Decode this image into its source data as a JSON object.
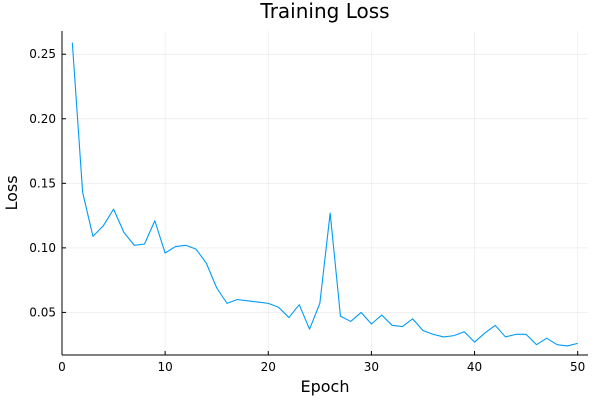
{
  "chart_data": {
    "type": "line",
    "title": "Training Loss",
    "xlabel": "Epoch",
    "ylabel": "Loss",
    "xlim": [
      0,
      51
    ],
    "ylim": [
      0.017,
      0.268
    ],
    "xticks": [
      0,
      10,
      20,
      30,
      40,
      50
    ],
    "yticks": [
      0.05,
      0.1,
      0.15,
      0.2,
      0.25
    ],
    "xtick_labels": [
      "0",
      "10",
      "20",
      "30",
      "40",
      "50"
    ],
    "ytick_labels": [
      "0.05",
      "0.10",
      "0.15",
      "0.20",
      "0.25"
    ],
    "grid": true,
    "legend": "none",
    "line_color": "#009AFA",
    "series": [
      {
        "x": [
          1,
          2,
          3,
          4,
          5,
          6,
          7,
          8,
          9,
          10,
          11,
          12,
          13,
          14,
          15,
          16,
          17,
          18,
          19,
          20,
          21,
          22,
          23,
          24,
          25,
          26,
          27,
          28,
          29,
          30,
          31,
          32,
          33,
          34,
          35,
          36,
          37,
          38,
          39,
          40,
          41,
          42,
          43,
          44,
          45,
          46,
          47,
          48,
          49,
          50
        ],
        "values": [
          0.259,
          0.143,
          0.109,
          0.117,
          0.13,
          0.112,
          0.102,
          0.103,
          0.121,
          0.096,
          0.101,
          0.102,
          0.099,
          0.088,
          0.069,
          0.057,
          0.06,
          0.059,
          0.058,
          0.057,
          0.054,
          0.046,
          0.056,
          0.037,
          0.057,
          0.127,
          0.047,
          0.043,
          0.05,
          0.041,
          0.048,
          0.04,
          0.039,
          0.045,
          0.036,
          0.033,
          0.031,
          0.032,
          0.035,
          0.027,
          0.034,
          0.04,
          0.031,
          0.033,
          0.033,
          0.025,
          0.03,
          0.025,
          0.024,
          0.026
        ]
      }
    ]
  }
}
